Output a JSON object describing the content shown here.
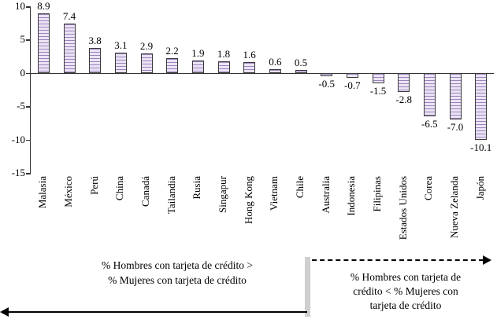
{
  "chart_data": {
    "type": "bar",
    "categories": [
      "Malasia",
      "México",
      "Perú",
      "China",
      "Canadá",
      "Tailandia",
      "Rusia",
      "Singapur",
      "Hong Kong",
      "Vietnam",
      "Chile",
      "Australia",
      "Indonesia",
      "Filipinas",
      "Estados Unidos",
      "Corea",
      "Nueva Zelanda",
      "Japón"
    ],
    "values": [
      8.9,
      7.4,
      3.8,
      3.1,
      2.9,
      2.2,
      1.9,
      1.8,
      1.6,
      0.6,
      0.5,
      -0.5,
      -0.7,
      -1.5,
      -2.8,
      -6.5,
      -7.0,
      -10.1
    ],
    "value_labels": [
      "8.9",
      "7.4",
      "3.8",
      "3.1",
      "2.9",
      "2.2",
      "1.9",
      "1.8",
      "1.6",
      "0.6",
      "0.5",
      "-0.5",
      "-0.7",
      "-1.5",
      "-2.8",
      "-6.5",
      "-7.0",
      "-10.1"
    ],
    "title": "",
    "xlabel": "",
    "ylabel": "",
    "ylim": [
      -15,
      10
    ],
    "yticks": [
      10,
      5,
      0,
      -5,
      -10,
      -15
    ],
    "ytick_labels": [
      "10",
      "5",
      "0",
      "-5",
      "-10",
      "-15"
    ],
    "grid": false,
    "legend": false,
    "bar_fill": "#eae3f5",
    "bar_hatch": "#9b84bb",
    "bar_border": "#3a3a3a"
  },
  "annotations": {
    "left_line1": "% Hombres con tarjeta de crédito >",
    "left_line2": "% Mujeres con tarjeta de crédito",
    "right_line1": "% Hombres con tarjeta de",
    "right_line2": "crédito  <  % Mujeres con",
    "right_line3": "tarjeta de crédito"
  }
}
